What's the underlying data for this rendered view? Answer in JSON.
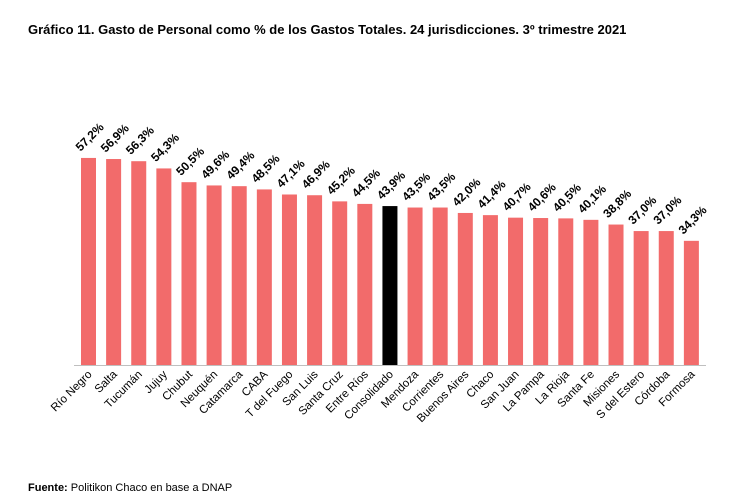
{
  "chart_data": {
    "type": "bar",
    "title": "Gráfico 11. Gasto de Personal como % de los Gastos Totales. 24 jurisdicciones. 3º trimestre 2021",
    "xlabel": "",
    "ylabel": "",
    "ylim": [
      0,
      60
    ],
    "grid": false,
    "categories": [
      "Río Negro",
      "Salta",
      "Tucumán",
      "Jujuy",
      "Chubut",
      "Neuquén",
      "Catamarca",
      "CABA",
      "T del Fuego",
      "San Luis",
      "Santa Cruz",
      "Entre Ríos",
      "Consolidado",
      "Mendoza",
      "Corrientes",
      "Buenos Aires",
      "Chaco",
      "San Juan",
      "La Pampa",
      "La Rioja",
      "Santa Fe",
      "Misiones",
      "S del Estero",
      "Córdoba",
      "Formosa"
    ],
    "values": [
      57.2,
      56.9,
      56.3,
      54.3,
      50.5,
      49.6,
      49.4,
      48.5,
      47.1,
      46.9,
      45.2,
      44.5,
      43.9,
      43.5,
      43.5,
      42.0,
      41.4,
      40.7,
      40.6,
      40.5,
      40.1,
      38.8,
      37.0,
      37.0,
      34.3
    ],
    "data_labels": [
      "57,2%",
      "56,9%",
      "56,3%",
      "54,3%",
      "50,5%",
      "49,6%",
      "49,4%",
      "48,5%",
      "47,1%",
      "46,9%",
      "45,2%",
      "44,5%",
      "43,9%",
      "43,5%",
      "43,5%",
      "42,0%",
      "41,4%",
      "40,7%",
      "40,6%",
      "40,5%",
      "40,1%",
      "38,8%",
      "37,0%",
      "37,0%",
      "34,3%"
    ],
    "colors": {
      "bar": "#f26b6b",
      "highlight": "#000000",
      "highlight_category": "Consolidado"
    }
  },
  "source": {
    "label": "Fuente:",
    "text": " Politikon Chaco en base a DNAP"
  }
}
